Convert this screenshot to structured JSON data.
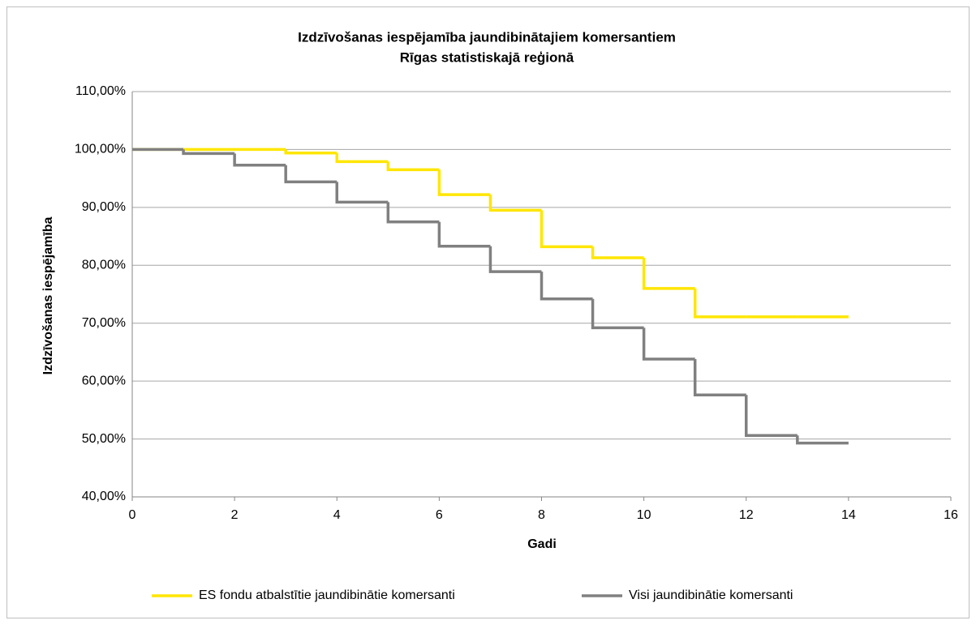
{
  "chart_data": {
    "type": "step",
    "title": [
      "Izdzīvošanas iespējamība jaundibinātajiem komersantiem",
      "Rīgas statistiskajā reģionā"
    ],
    "xlabel": "Gadi",
    "ylabel": "Izdzīvošanas iespējamība",
    "x": [
      0,
      1,
      2,
      3,
      4,
      5,
      6,
      7,
      8,
      9,
      10,
      11,
      12,
      13,
      14
    ],
    "series": [
      {
        "name": "ES fondu atbalstītie jaundibinātie komersanti",
        "color": "#ffe600",
        "values": [
          100,
          100,
          100,
          99.4,
          97.9,
          96.5,
          92.2,
          89.5,
          83.2,
          81.3,
          76,
          71.1,
          71.1,
          71.1,
          71.1
        ]
      },
      {
        "name": "Visi jaundibinātie komersanti",
        "color": "#808080",
        "values": [
          100,
          99.3,
          97.3,
          94.4,
          90.9,
          87.5,
          83.3,
          78.9,
          74.2,
          69.2,
          63.8,
          57.6,
          50.6,
          49.3,
          49.3
        ]
      }
    ],
    "xlim": [
      0,
      16
    ],
    "xticks": [
      0,
      2,
      4,
      6,
      8,
      10,
      12,
      14,
      16
    ],
    "ylim": [
      40,
      110
    ],
    "yticks": [
      {
        "value": 40,
        "label": "40,00%"
      },
      {
        "value": 50,
        "label": "50,00%"
      },
      {
        "value": 60,
        "label": "60,00%"
      },
      {
        "value": 70,
        "label": "70,00%"
      },
      {
        "value": 80,
        "label": "80,00%"
      },
      {
        "value": 90,
        "label": "90,00%"
      },
      {
        "value": 100,
        "label": "100,00%"
      },
      {
        "value": 110,
        "label": "110,00%"
      }
    ],
    "grid": true,
    "legend": "bottom"
  }
}
